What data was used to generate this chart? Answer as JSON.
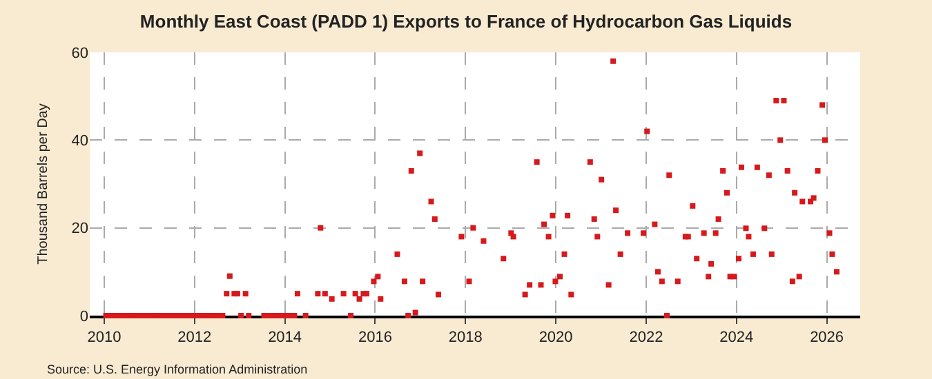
{
  "chart_data": {
    "type": "scatter",
    "title": "Monthly East Coast (PADD 1) Exports to France of Hydrocarbon Gas Liquids",
    "ylabel": "Thousand Barrels per Day",
    "annotations": [
      "Source: U.S. Energy Information Administration"
    ],
    "x": [
      2010.04,
      2010.13,
      2010.21,
      2010.29,
      2010.38,
      2010.46,
      2010.54,
      2010.63,
      2010.71,
      2010.79,
      2010.88,
      2010.96,
      2011.04,
      2011.13,
      2011.21,
      2011.29,
      2011.38,
      2011.46,
      2011.54,
      2011.63,
      2011.71,
      2011.79,
      2011.88,
      2011.96,
      2012.04,
      2012.13,
      2012.21,
      2012.29,
      2012.38,
      2012.46,
      2012.54,
      2012.62,
      2012.71,
      2012.78,
      2012.88,
      2012.95,
      2013.03,
      2013.13,
      2013.2,
      2013.54,
      2013.63,
      2013.71,
      2013.79,
      2013.88,
      2013.96,
      2014.04,
      2014.13,
      2014.21,
      2014.28,
      2014.46,
      2014.73,
      2014.79,
      2014.89,
      2015.04,
      2015.3,
      2015.46,
      2015.56,
      2015.65,
      2015.74,
      2015.81,
      2015.97,
      2016.06,
      2016.12,
      2016.49,
      2016.65,
      2016.73,
      2016.8,
      2016.89,
      2016.99,
      2017.05,
      2017.24,
      2017.32,
      2017.4,
      2017.91,
      2018.08,
      2018.17,
      2018.4,
      2018.84,
      2019.01,
      2019.06,
      2019.32,
      2019.42,
      2019.58,
      2019.67,
      2019.74,
      2019.84,
      2019.93,
      2019.99,
      2020.09,
      2020.19,
      2020.26,
      2020.34,
      2020.76,
      2020.85,
      2020.92,
      2021.01,
      2021.17,
      2021.27,
      2021.33,
      2021.43,
      2021.59,
      2021.94,
      2022.02,
      2022.19,
      2022.26,
      2022.35,
      2022.46,
      2022.51,
      2022.7,
      2022.87,
      2022.93,
      2023.03,
      2023.12,
      2023.28,
      2023.38,
      2023.44,
      2023.54,
      2023.6,
      2023.7,
      2023.79,
      2023.86,
      2023.95,
      2024.05,
      2024.11,
      2024.21,
      2024.27,
      2024.37,
      2024.46,
      2024.62,
      2024.72,
      2024.78,
      2024.88,
      2024.97,
      2025.05,
      2025.13,
      2025.24,
      2025.29,
      2025.39,
      2025.46,
      2025.64,
      2025.71,
      2025.8,
      2025.9,
      2025.96,
      2026.06,
      2026.12,
      2026.22
    ],
    "series": [
      {
        "color": "#d7191c",
        "values": [
          0,
          0,
          0,
          0,
          0,
          0,
          0,
          0,
          0,
          0,
          0,
          0,
          0,
          0,
          0,
          0,
          0,
          0,
          0,
          0,
          0,
          0,
          0,
          0,
          0,
          0,
          0,
          0,
          0,
          0,
          0,
          0,
          5,
          9,
          5,
          5,
          0,
          5,
          0,
          0,
          0,
          0,
          0,
          0,
          0,
          0,
          0,
          0,
          5,
          0,
          5,
          20,
          5,
          3.8,
          5,
          0,
          5,
          3.8,
          5,
          5,
          7.8,
          8.9,
          3.8,
          14,
          7.8,
          0,
          33,
          0.7,
          37,
          7.8,
          26,
          22,
          4.8,
          18,
          7.8,
          20,
          17,
          13,
          18.8,
          18,
          4.8,
          7,
          35,
          7,
          20.8,
          18,
          22.8,
          7.8,
          8.9,
          14,
          22.8,
          4.8,
          35,
          22,
          18,
          31,
          7,
          58,
          24,
          14,
          18.8,
          18.8,
          42,
          20.8,
          10,
          7.8,
          0,
          32,
          7.8,
          18,
          18,
          25,
          13,
          18.8,
          8.9,
          11.8,
          18.8,
          22,
          33,
          28,
          8.9,
          8.9,
          13,
          33.8,
          19.9,
          18,
          14,
          33.8,
          19.9,
          32,
          14,
          49,
          40,
          49,
          33,
          7.8,
          28,
          8.9,
          26,
          26,
          26.8,
          33,
          48,
          40,
          18.8,
          14,
          10
        ]
      }
    ],
    "xlim": [
      2009.68,
      2026.74
    ],
    "xticks": [
      2010,
      2012,
      2014,
      2016,
      2018,
      2020,
      2022,
      2024,
      2026
    ],
    "ylim": [
      0,
      60
    ],
    "yticks": [
      0,
      20,
      40,
      60
    ],
    "grid": true,
    "marker": "square",
    "legend": false
  }
}
